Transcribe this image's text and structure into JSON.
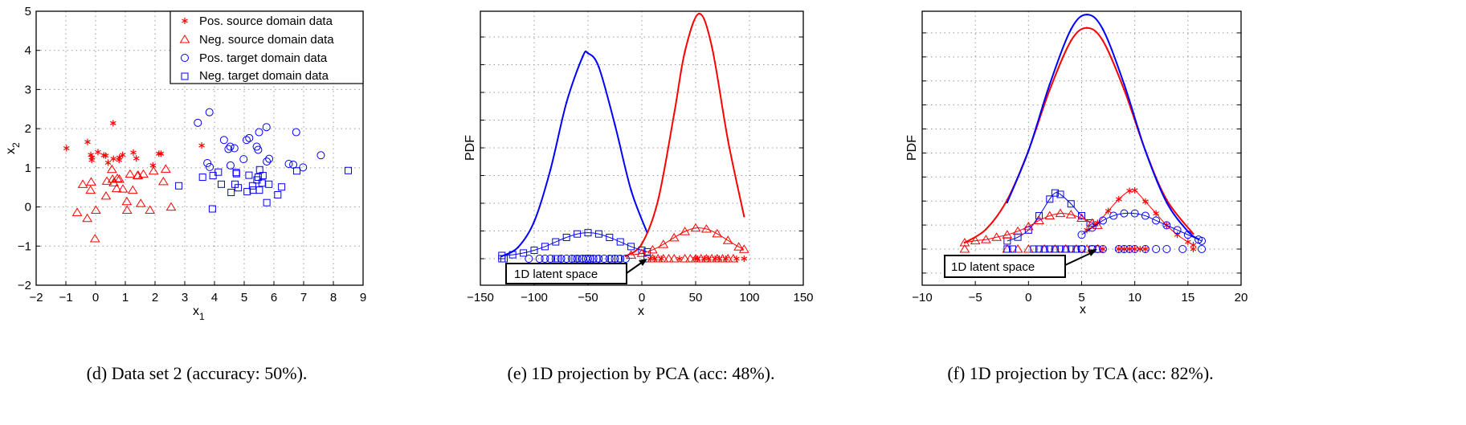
{
  "colors": {
    "red": "#ff0000",
    "blue": "#0000ff"
  },
  "chart_data": [
    {
      "type": "scatter",
      "caption": "(d) Data set 2 (accuracy: 50%).",
      "xlabel": "x",
      "xlabel_sub": "1",
      "ylabel": "x",
      "ylabel_sub": "2",
      "xlim": [
        -2,
        9
      ],
      "ylim": [
        -2,
        5
      ],
      "xticks": [
        "-2",
        "-1",
        "0",
        "1",
        "2",
        "3",
        "4",
        "5",
        "6",
        "7",
        "8",
        "9"
      ],
      "yticks": [
        "-2",
        "-1",
        "0",
        "1",
        "2",
        "3",
        "4",
        "5"
      ],
      "grid": true,
      "legend_position": "top-right",
      "series": [
        {
          "name": "Pos. source domain data",
          "marker": "star",
          "color": "#ff0000",
          "points": [
            [
              -0.98,
              1.5
            ],
            [
              -0.27,
              1.66
            ],
            [
              -0.16,
              1.33
            ],
            [
              -0.13,
              1.2
            ],
            [
              -0.12,
              1.26
            ],
            [
              0.08,
              1.4
            ],
            [
              0.28,
              1.32
            ],
            [
              0.34,
              1.31
            ],
            [
              0.42,
              1.13
            ],
            [
              0.59,
              2.14
            ],
            [
              0.6,
              1.23
            ],
            [
              0.79,
              1.2
            ],
            [
              0.8,
              1.26
            ],
            [
              0.91,
              1.33
            ],
            [
              1.27,
              1.39
            ],
            [
              1.37,
              1.24
            ],
            [
              1.93,
              1.06
            ],
            [
              2.13,
              1.36
            ],
            [
              2.2,
              1.36
            ],
            [
              3.57,
              1.57
            ]
          ]
        },
        {
          "name": "Neg. source domain data",
          "marker": "triangle",
          "color": "#ff0000",
          "points": [
            [
              -0.62,
              -0.14
            ],
            [
              -0.43,
              0.58
            ],
            [
              -0.28,
              -0.29
            ],
            [
              -0.15,
              0.64
            ],
            [
              -0.17,
              0.43
            ],
            [
              -0.02,
              -0.81
            ],
            [
              0.01,
              -0.08
            ],
            [
              0.35,
              0.28
            ],
            [
              0.38,
              0.66
            ],
            [
              0.55,
              0.96
            ],
            [
              0.57,
              0.71
            ],
            [
              0.61,
              0.62
            ],
            [
              0.71,
              0.47
            ],
            [
              0.73,
              0.73
            ],
            [
              0.8,
              0.71
            ],
            [
              0.92,
              0.46
            ],
            [
              1.05,
              0.14
            ],
            [
              1.06,
              -0.08
            ],
            [
              1.16,
              0.84
            ],
            [
              1.25,
              0.43
            ],
            [
              1.41,
              0.8
            ],
            [
              1.43,
              0.81
            ],
            [
              1.52,
              0.09
            ],
            [
              1.61,
              0.84
            ],
            [
              1.83,
              -0.08
            ],
            [
              1.95,
              0.92
            ],
            [
              2.28,
              0.65
            ],
            [
              2.36,
              0.97
            ],
            [
              2.54,
              0.0
            ]
          ]
        },
        {
          "name": "Pos. target domain data",
          "marker": "circle",
          "color": "#0000ff",
          "points": [
            [
              3.44,
              2.15
            ],
            [
              3.83,
              2.42
            ],
            [
              3.76,
              1.12
            ],
            [
              3.84,
              1.02
            ],
            [
              4.32,
              1.71
            ],
            [
              4.47,
              1.48
            ],
            [
              4.53,
              1.54
            ],
            [
              4.67,
              1.5
            ],
            [
              4.54,
              1.06
            ],
            [
              4.98,
              1.22
            ],
            [
              5.08,
              1.71
            ],
            [
              5.17,
              1.76
            ],
            [
              5.42,
              1.54
            ],
            [
              5.47,
              1.46
            ],
            [
              5.5,
              1.91
            ],
            [
              5.75,
              2.04
            ],
            [
              5.76,
              1.16
            ],
            [
              5.84,
              1.23
            ],
            [
              6.5,
              1.1
            ],
            [
              6.65,
              1.08
            ],
            [
              6.75,
              1.91
            ],
            [
              6.98,
              1.01
            ],
            [
              7.58,
              1.32
            ]
          ]
        },
        {
          "name": "Neg. target domain data",
          "marker": "square",
          "color": "#0000ff",
          "points": [
            [
              2.8,
              0.54
            ],
            [
              3.6,
              0.76
            ],
            [
              3.95,
              0.8
            ],
            [
              4.13,
              0.89
            ],
            [
              3.93,
              -0.05
            ],
            [
              4.23,
              0.58
            ],
            [
              4.56,
              0.37
            ],
            [
              4.69,
              0.58
            ],
            [
              4.73,
              0.88
            ],
            [
              4.74,
              0.85
            ],
            [
              4.8,
              0.49
            ],
            [
              5.1,
              0.39
            ],
            [
              5.16,
              0.81
            ],
            [
              5.28,
              0.54
            ],
            [
              5.3,
              0.43
            ],
            [
              5.43,
              0.69
            ],
            [
              5.47,
              0.76
            ],
            [
              5.52,
              0.95
            ],
            [
              5.51,
              0.43
            ],
            [
              5.6,
              0.61
            ],
            [
              5.63,
              0.8
            ],
            [
              5.76,
              0.11
            ],
            [
              5.83,
              0.58
            ],
            [
              6.13,
              0.31
            ],
            [
              6.26,
              0.51
            ],
            [
              6.77,
              0.92
            ],
            [
              8.5,
              0.93
            ]
          ]
        }
      ]
    },
    {
      "type": "line",
      "caption": "(e) 1D projection by PCA (acc: 48%).",
      "xlabel": "x",
      "ylabel": "PDF",
      "xlim": [
        -150,
        150
      ],
      "xticks": [
        "-150",
        "-100",
        "-50",
        "0",
        "50",
        "100",
        "150"
      ],
      "grid": true,
      "annotation": "1D latent space",
      "series": [
        {
          "marker": "dot",
          "color": "#0000ff",
          "x": [
            -130,
            -115,
            -100,
            -85,
            -70,
            -55,
            -50,
            -40,
            -25,
            -10,
            5
          ],
          "y": [
            0.01,
            0.046,
            0.15,
            0.358,
            0.631,
            0.816,
            0.83,
            0.775,
            0.541,
            0.277,
            0.105
          ]
        },
        {
          "marker": "dot",
          "color": "#ff0000",
          "x": [
            -15,
            0,
            15,
            30,
            40,
            53,
            65,
            80,
            95
          ],
          "y": [
            0.01,
            0.06,
            0.235,
            0.585,
            0.837,
            0.99,
            0.858,
            0.479,
            0.171
          ]
        },
        {
          "marker": "square",
          "color": "#0000ff",
          "x": [
            -130,
            -120,
            -110,
            -100,
            -90,
            -80,
            -70,
            -60,
            -50,
            -40,
            -30,
            -20,
            -10,
            0,
            5
          ],
          "y": [
            0.013,
            0.016,
            0.023,
            0.034,
            0.049,
            0.068,
            0.086,
            0.1,
            0.105,
            0.1,
            0.086,
            0.068,
            0.049,
            0.034,
            0.028
          ]
        },
        {
          "marker": "triangle",
          "color": "#ff0000",
          "x": [
            -10,
            0,
            10,
            20,
            30,
            40,
            50,
            60,
            70,
            80,
            90,
            95
          ],
          "y": [
            0.015,
            0.022,
            0.036,
            0.058,
            0.085,
            0.11,
            0.124,
            0.12,
            0.101,
            0.074,
            0.048,
            0.038
          ]
        },
        {
          "marker": "circle",
          "color": "#0000ff",
          "baseline": true,
          "x": [
            -105,
            -95,
            -90,
            -85,
            -75,
            -70,
            -65,
            -60,
            -55,
            -52,
            -50,
            -48,
            -45,
            -40,
            -35,
            -30,
            -25,
            -20,
            -15
          ]
        },
        {
          "marker": "square",
          "color": "#0000ff",
          "baseline": true,
          "x": [
            -130,
            -128,
            -80,
            -78,
            -62,
            -58,
            -42,
            -28,
            -22,
            5
          ]
        },
        {
          "marker": "triangle",
          "color": "#ff0000",
          "baseline": true,
          "x": [
            10,
            15,
            20,
            25,
            30,
            40,
            45,
            50,
            55,
            60,
            65,
            70,
            75,
            80,
            85
          ]
        },
        {
          "marker": "star",
          "color": "#ff0000",
          "baseline": true,
          "x": [
            8,
            12,
            18,
            35,
            50,
            52,
            58,
            62,
            68,
            72,
            78,
            88,
            95
          ]
        }
      ]
    },
    {
      "type": "line",
      "caption": "(f) 1D projection by TCA (acc: 82%).",
      "xlabel": "x",
      "ylabel": "PDF",
      "xlim": [
        -10,
        20
      ],
      "xticks": [
        "-10",
        "-5",
        "0",
        "5",
        "10",
        "15",
        "20"
      ],
      "grid": true,
      "annotation": "1D latent space",
      "series": [
        {
          "marker": "dot",
          "color": "#ff0000",
          "x": [
            -6,
            -4,
            -2,
            0,
            2,
            4,
            5.5,
            7,
            9,
            11,
            13,
            15.5
          ],
          "y": [
            0.027,
            0.083,
            0.207,
            0.414,
            0.67,
            0.876,
            0.93,
            0.876,
            0.67,
            0.414,
            0.207,
            0.064
          ]
        },
        {
          "marker": "dot",
          "color": "#0000ff",
          "x": [
            -2,
            0,
            2,
            4,
            5.5,
            7,
            9,
            11,
            13,
            15,
            16
          ],
          "y": [
            0.196,
            0.413,
            0.693,
            0.924,
            0.986,
            0.924,
            0.693,
            0.413,
            0.196,
            0.074,
            0.041
          ]
        },
        {
          "marker": "square",
          "color": "#0000ff",
          "x": [
            -2,
            -1,
            0,
            1,
            2,
            2.5,
            3,
            4,
            5,
            5.8
          ],
          "y": [
            0.034,
            0.05,
            0.08,
            0.14,
            0.21,
            0.236,
            0.23,
            0.19,
            0.14,
            0.11
          ]
        },
        {
          "marker": "triangle",
          "color": "#ff0000",
          "x": [
            -6,
            -5,
            -4,
            -3,
            -2,
            -1,
            0,
            1,
            2,
            3,
            4,
            5,
            6,
            6.5
          ],
          "y": [
            0.027,
            0.035,
            0.04,
            0.05,
            0.06,
            0.075,
            0.095,
            0.12,
            0.14,
            0.15,
            0.145,
            0.13,
            0.11,
            0.1
          ]
        },
        {
          "marker": "star",
          "color": "#ff0000",
          "x": [
            5.5,
            6.5,
            7.5,
            8.5,
            9.5,
            10,
            11,
            12,
            13,
            14,
            15,
            15.5
          ],
          "y": [
            0.08,
            0.11,
            0.16,
            0.21,
            0.245,
            0.247,
            0.2,
            0.15,
            0.1,
            0.06,
            0.03,
            0.017
          ]
        },
        {
          "marker": "circle",
          "color": "#0000ff",
          "x": [
            5,
            6,
            7,
            8,
            9,
            10,
            11,
            12,
            13,
            14,
            15,
            16,
            16.3
          ],
          "y": [
            0.06,
            0.09,
            0.12,
            0.14,
            0.15,
            0.15,
            0.14,
            0.12,
            0.1,
            0.08,
            0.06,
            0.04,
            0.034
          ]
        },
        {
          "marker": "triangle",
          "color": "#ff0000",
          "baseline": true,
          "x": [
            -6,
            -2,
            -1,
            0,
            1.5,
            2.5,
            3.5,
            4.5,
            5.5,
            6.5
          ]
        },
        {
          "marker": "square",
          "color": "#0000ff",
          "baseline": true,
          "x": [
            -2,
            -1.5,
            0.5,
            1,
            1.5,
            2,
            2.5,
            3,
            3.5,
            4,
            4.5,
            5,
            6
          ]
        },
        {
          "marker": "circle",
          "color": "#0000ff",
          "baseline": true,
          "x": [
            5,
            6,
            6.5,
            7,
            8.5,
            9,
            9.5,
            10,
            11,
            12,
            13,
            14.5,
            16.3
          ]
        },
        {
          "marker": "star",
          "color": "#ff0000",
          "baseline": true,
          "x": [
            7,
            8.5,
            9,
            9.5,
            10,
            10.5,
            11,
            15.5
          ]
        }
      ]
    }
  ]
}
